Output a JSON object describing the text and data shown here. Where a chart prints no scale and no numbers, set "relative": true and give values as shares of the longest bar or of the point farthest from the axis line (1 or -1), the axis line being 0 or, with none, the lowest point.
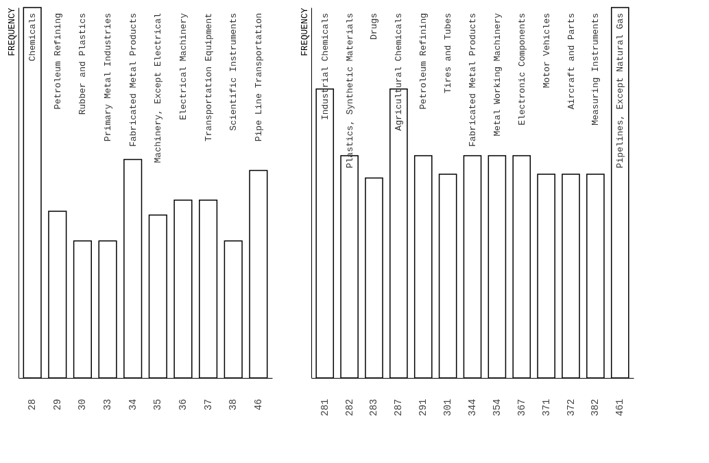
{
  "chart_data": [
    {
      "type": "bar",
      "relative": true,
      "ylabel": "FREQUENCY",
      "color": "#ffffff",
      "grid": false,
      "categories": [
        "28",
        "29",
        "30",
        "33",
        "34",
        "35",
        "36",
        "37",
        "38",
        "46"
      ],
      "values": [
        1,
        0.45,
        0.37,
        0.37,
        0.59,
        0.44,
        0.48,
        0.48,
        0.37,
        0.56
      ],
      "annotations": [
        "Chemicals",
        "Petroleum Refining",
        "Rubber and Plastics",
        "Primary Metal Industries",
        "Fabricated Metal Products",
        "Machinery, Except Electrical",
        "Electrical Machinery",
        "Transportation Equipment",
        "Scientific Instruments",
        "Pipe Line Transportation"
      ]
    },
    {
      "type": "bar",
      "relative": true,
      "ylabel": "FREQUENCY",
      "color": "#ffffff",
      "grid": false,
      "categories": [
        "281",
        "282",
        "283",
        "287",
        "291",
        "301",
        "344",
        "354",
        "367",
        "371",
        "372",
        "382",
        "461"
      ],
      "values": [
        0.78,
        0.6,
        0.54,
        0.78,
        0.6,
        0.55,
        0.6,
        0.6,
        0.6,
        0.55,
        0.55,
        0.55,
        1
      ],
      "annotations": [
        "Industrial Chemicals",
        "Plastics, Synthetic Materials",
        "Drugs",
        "Agricultural Chemicals",
        "Petroleum Refining",
        "Tires and Tubes",
        "Fabricated Metal Products",
        "Metal Working Machinery",
        "Electronic Components",
        "Motor Vehicles",
        "Aircraft and Parts",
        "Measuring Instruments",
        "Pipelines, Except Natural Gas"
      ]
    }
  ]
}
